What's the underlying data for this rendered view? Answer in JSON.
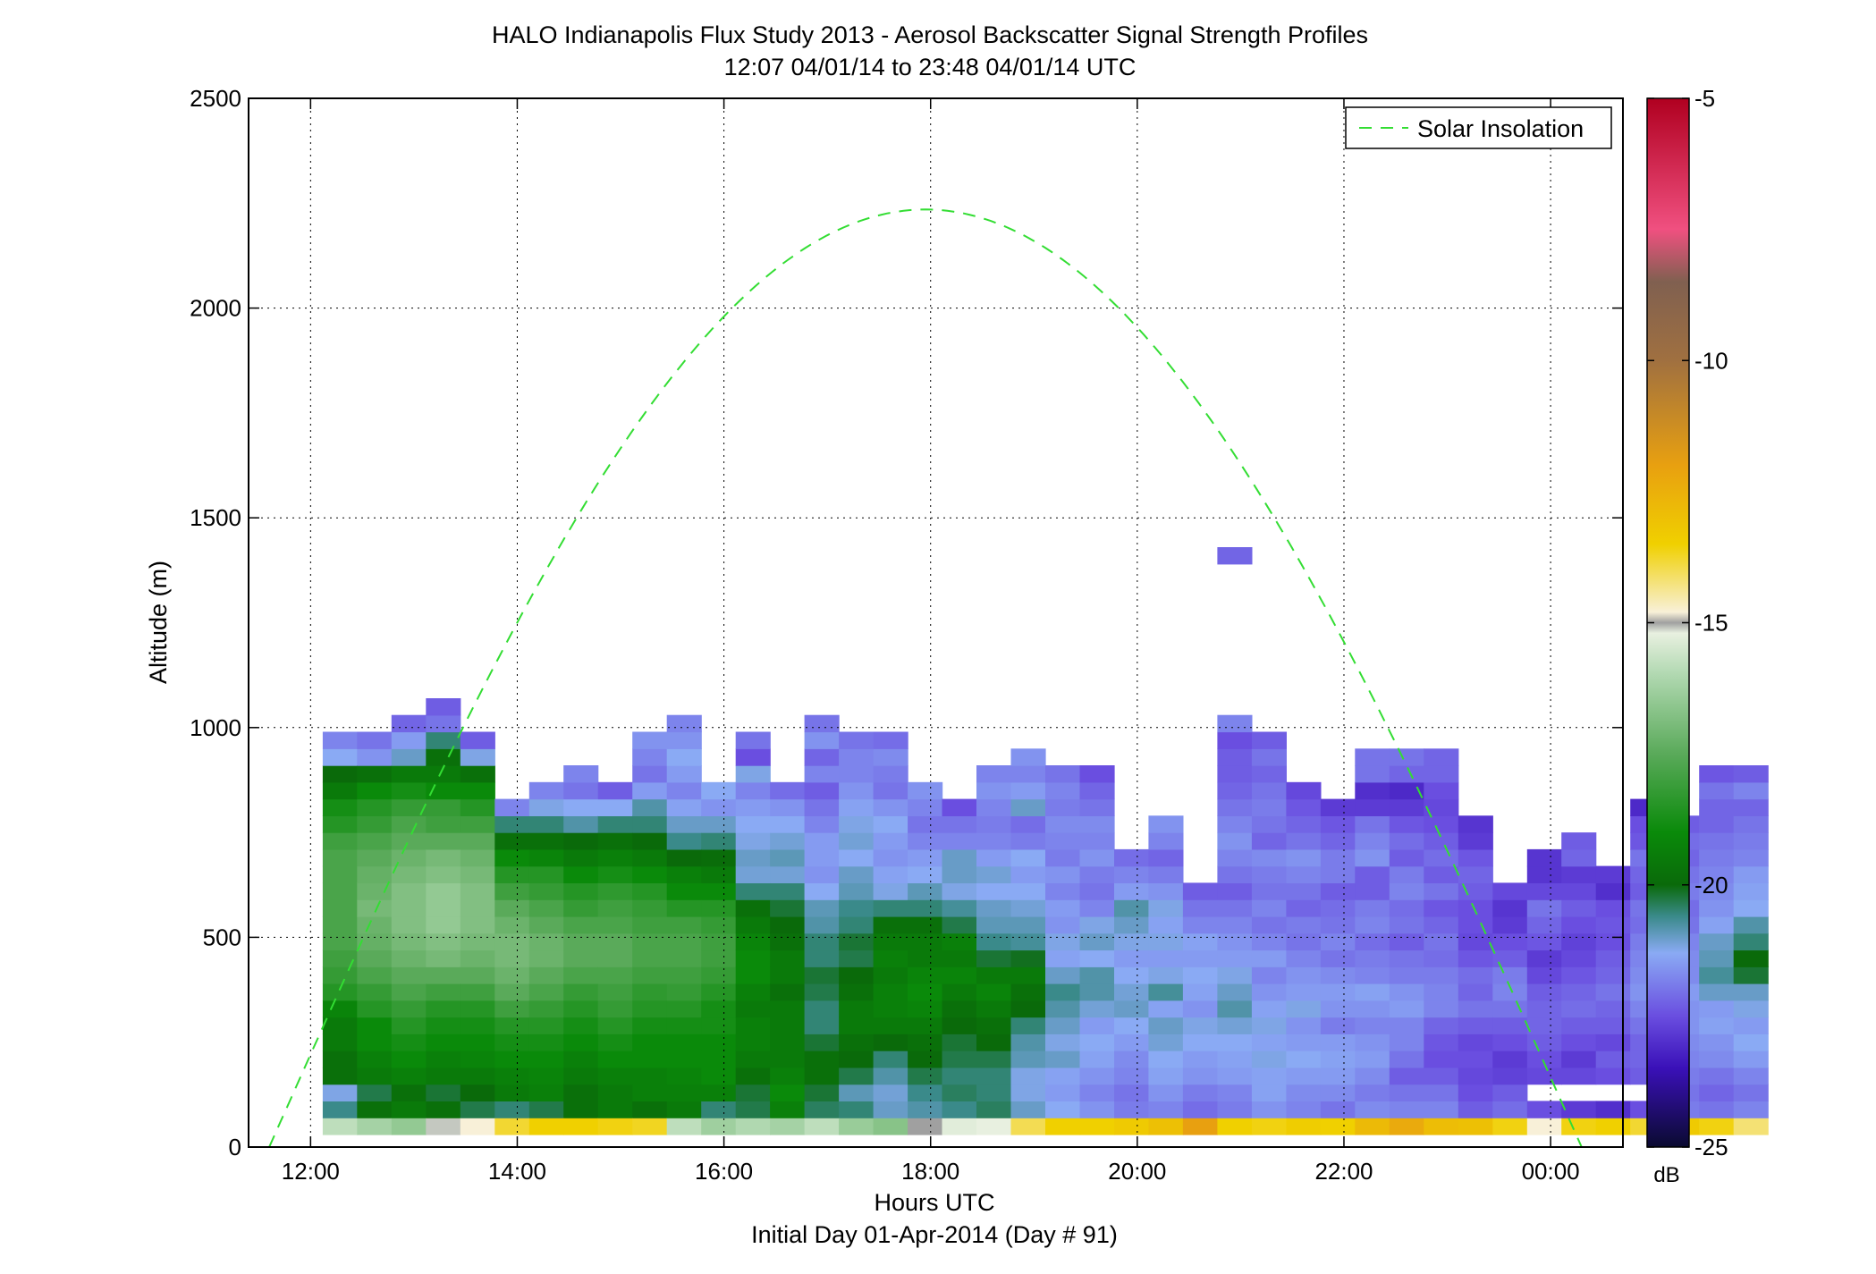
{
  "figure": {
    "title_line1": "HALO Indianapolis Flux Study 2013 - Aerosol Backscatter Signal Strength Profiles",
    "title_line2": "12:07 04/01/14 to 23:48 04/01/14  UTC",
    "xlabel": "Hours UTC",
    "xlabel2": "Initial Day 01-Apr-2014 (Day # 91)",
    "ylabel": "Altitude (m)",
    "colorbar_unit": "dB",
    "legend_label": "Solar Insolation"
  },
  "chart_data": {
    "type": "heatmap",
    "title": "HALO Indianapolis Flux Study 2013 - Aerosol Backscatter Signal Strength Profiles",
    "subtitle": "12:07 04/01/14 to 23:48 04/01/14  UTC",
    "xlabel": "Hours UTC",
    "ylabel": "Altitude (m)",
    "xlim": [
      11.4,
      24.7
    ],
    "ylim": [
      0,
      2500
    ],
    "x_ticks": [
      12,
      14,
      16,
      18,
      20,
      22,
      24
    ],
    "x_tick_labels": [
      "12:00",
      "14:00",
      "16:00",
      "18:00",
      "20:00",
      "22:00",
      "00:00"
    ],
    "y_ticks": [
      0,
      500,
      1000,
      1500,
      2000,
      2500
    ],
    "y_tick_labels": [
      "0",
      "500",
      "1000",
      "1500",
      "2000",
      "2500"
    ],
    "grid": true,
    "colorbar": {
      "min": -25,
      "max": -5,
      "ticks": [
        -25,
        -20,
        -15,
        -10,
        -5
      ],
      "tick_labels": [
        "-25",
        "-20",
        "-15",
        "-10",
        "-5"
      ],
      "unit": "dB"
    },
    "colormap": [
      [
        -25,
        "#0a0a30"
      ],
      [
        -23.5,
        "#3a10b8"
      ],
      [
        -22.5,
        "#6a4ee0"
      ],
      [
        -21.3,
        "#8aaaf4"
      ],
      [
        -20.6,
        "#3a8a8a"
      ],
      [
        -20,
        "#0a6a0a"
      ],
      [
        -19,
        "#0a8a0a"
      ],
      [
        -17.5,
        "#5aaa5a"
      ],
      [
        -16,
        "#b0d8b0"
      ],
      [
        -15.2,
        "#e8f0e0"
      ],
      [
        -15,
        "#a0a0a0"
      ],
      [
        -14.8,
        "#f8f0d8"
      ],
      [
        -13.5,
        "#f0d000"
      ],
      [
        -12,
        "#e8a010"
      ],
      [
        -10,
        "#a07040"
      ],
      [
        -8.5,
        "#806050"
      ],
      [
        -7.5,
        "#f05080"
      ],
      [
        -5,
        "#b00020"
      ]
    ],
    "time_start": 12.117,
    "time_step": 0.333,
    "alt_base": 50,
    "alt_step": 40,
    "profiles": [
      [
        -15.8,
        -20.6,
        -21.2,
        -19.8,
        -19.8,
        -19.5,
        -19.5,
        -19.2,
        -18.5,
        -18.2,
        -18.0,
        -17.8,
        -17.8,
        -17.8,
        -17.8,
        -17.8,
        -17.8,
        -18.0,
        -18.5,
        -18.8,
        -19.5,
        -20.0,
        -21.3,
        -21.8
      ],
      [
        -16.2,
        -19.8,
        -20.3,
        -19.5,
        -19.3,
        -19.0,
        -19.0,
        -18.5,
        -18.2,
        -17.8,
        -17.5,
        -17.3,
        -17.2,
        -17.0,
        -17.2,
        -17.3,
        -17.5,
        -17.8,
        -18.2,
        -18.5,
        -19.0,
        -19.8,
        -21.6,
        -22.0
      ],
      [
        -16.5,
        -19.5,
        -19.8,
        -19.3,
        -19.0,
        -18.8,
        -18.5,
        -18.2,
        -17.8,
        -17.5,
        -17.2,
        -17.0,
        -16.8,
        -16.8,
        -16.8,
        -17.0,
        -17.2,
        -17.5,
        -17.8,
        -18.2,
        -18.8,
        -19.5,
        -21.0,
        -21.5,
        -22.2
      ],
      [
        -15.1,
        -19.8,
        -20.2,
        -19.5,
        -19.3,
        -19.0,
        -18.8,
        -18.5,
        -18.0,
        -17.5,
        -17.0,
        -16.8,
        -16.5,
        -16.5,
        -16.5,
        -16.8,
        -17.0,
        -17.5,
        -18.0,
        -18.2,
        -19.0,
        -19.5,
        -19.8,
        -20.5,
        -22.0,
        -22.3
      ],
      [
        -14.8,
        -20.3,
        -20.0,
        -19.5,
        -19.2,
        -19.0,
        -18.8,
        -18.5,
        -18.0,
        -17.5,
        -17.2,
        -17.0,
        -16.8,
        -16.8,
        -16.8,
        -17.0,
        -17.2,
        -17.5,
        -18.0,
        -18.5,
        -19.0,
        -19.8,
        -21.2,
        -22.3
      ],
      [
        -13.8,
        -20.5,
        -19.5,
        -19.3,
        -19.0,
        -18.8,
        -18.5,
        -18.0,
        -17.5,
        -17.2,
        -17.0,
        -17.0,
        -17.2,
        -17.5,
        -18.0,
        -18.5,
        -19.0,
        -19.8,
        -20.5,
        -21.8
      ],
      [
        -13.5,
        -20.3,
        -19.3,
        -19.2,
        -19.0,
        -18.8,
        -18.5,
        -18.2,
        -17.8,
        -17.5,
        -17.2,
        -17.2,
        -17.5,
        -17.8,
        -18.2,
        -18.5,
        -19.2,
        -19.8,
        -20.5,
        -21.2,
        -21.8
      ],
      [
        -13.5,
        -19.8,
        -19.8,
        -19.5,
        -19.3,
        -19.0,
        -18.8,
        -18.5,
        -18.2,
        -17.8,
        -17.5,
        -17.5,
        -17.8,
        -18.2,
        -18.5,
        -19.0,
        -19.5,
        -20.0,
        -20.8,
        -21.3,
        -22.0,
        -21.8
      ],
      [
        -13.6,
        -19.5,
        -19.5,
        -19.3,
        -19.0,
        -18.8,
        -18.5,
        -18.2,
        -18.0,
        -17.8,
        -17.5,
        -17.5,
        -17.8,
        -18.0,
        -18.3,
        -18.8,
        -19.3,
        -19.8,
        -20.5,
        -21.3,
        -22.3
      ],
      [
        -13.7,
        -19.8,
        -19.3,
        -19.3,
        -19.0,
        -19.0,
        -18.8,
        -18.5,
        -18.3,
        -18.0,
        -17.8,
        -17.8,
        -18.0,
        -18.2,
        -18.5,
        -19.0,
        -19.5,
        -20.0,
        -20.5,
        -20.8,
        -21.5,
        -22.0,
        -21.8,
        -21.6
      ],
      [
        -15.8,
        -19.5,
        -19.3,
        -19.2,
        -19.0,
        -19.0,
        -18.8,
        -18.5,
        -18.2,
        -18.0,
        -17.8,
        -17.8,
        -18.0,
        -18.5,
        -19.0,
        -19.3,
        -20.0,
        -20.6,
        -21.0,
        -21.4,
        -21.8,
        -21.5,
        -21.3,
        -21.6,
        -21.8
      ],
      [
        -16.3,
        -20.5,
        -19.3,
        -19.0,
        -19.0,
        -19.0,
        -18.8,
        -18.8,
        -18.5,
        -18.2,
        -18.0,
        -18.0,
        -18.2,
        -18.5,
        -19.0,
        -19.5,
        -19.9,
        -20.5,
        -21.0,
        -21.6,
        -21.3
      ],
      [
        -16.0,
        -20.3,
        -20.2,
        -19.8,
        -19.5,
        -19.3,
        -19.3,
        -19.5,
        -19.3,
        -19.0,
        -19.0,
        -19.2,
        -19.5,
        -19.8,
        -20.5,
        -21.1,
        -21.0,
        -21.2,
        -21.3,
        -21.5,
        -21.8,
        -21.2,
        -22.5,
        -22.0
      ],
      [
        -16.2,
        -19.3,
        -19.0,
        -19.3,
        -19.5,
        -19.5,
        -19.5,
        -19.5,
        -19.8,
        -19.5,
        -19.5,
        -19.8,
        -20.0,
        -20.2,
        -20.5,
        -21.1,
        -20.9,
        -21.1,
        -21.3,
        -21.6,
        -22.1
      ],
      [
        -15.8,
        -20.4,
        -20.2,
        -19.8,
        -19.8,
        -20.2,
        -20.5,
        -20.5,
        -20.3,
        -20.2,
        -20.5,
        -20.5,
        -20.8,
        -20.9,
        -21.3,
        -21.6,
        -21.5,
        -21.5,
        -21.8,
        -22.0,
        -22.3,
        -21.8,
        -22.2,
        -21.6,
        -22.0
      ],
      [
        -16.4,
        -20.5,
        -20.9,
        -20.3,
        -20.0,
        -19.8,
        -19.5,
        -19.5,
        -19.8,
        -20.0,
        -20.3,
        -20.2,
        -20.5,
        -20.6,
        -20.9,
        -21.0,
        -21.3,
        -21.1,
        -21.2,
        -21.4,
        -21.6,
        -21.8,
        -21.8,
        -22.0
      ],
      [
        -16.7,
        -21.0,
        -21.1,
        -20.8,
        -20.5,
        -20.0,
        -19.5,
        -19.3,
        -19.3,
        -19.5,
        -19.3,
        -19.5,
        -19.8,
        -20.5,
        -21.2,
        -21.4,
        -21.6,
        -21.5,
        -21.3,
        -21.6,
        -22.0,
        -21.9,
        -21.7,
        -22.1
      ],
      [
        -15.0,
        -20.8,
        -20.6,
        -20.3,
        -20.0,
        -19.8,
        -19.5,
        -19.2,
        -19.0,
        -19.2,
        -19.5,
        -19.5,
        -19.8,
        -20.5,
        -20.9,
        -21.3,
        -21.5,
        -21.8,
        -22.0,
        -21.8,
        -21.6
      ],
      [
        -15.3,
        -20.6,
        -20.4,
        -20.5,
        -20.3,
        -20.2,
        -20.0,
        -19.8,
        -19.5,
        -19.2,
        -19.5,
        -19.3,
        -20.3,
        -20.7,
        -21.2,
        -21.0,
        -21.0,
        -21.8,
        -22.0,
        -22.5
      ],
      [
        -15.2,
        -20.4,
        -20.5,
        -20.5,
        -20.3,
        -20.0,
        -19.8,
        -19.5,
        -19.2,
        -19.5,
        -20.2,
        -20.6,
        -20.9,
        -21.0,
        -21.3,
        -21.1,
        -21.5,
        -21.8,
        -21.9,
        -21.8,
        -21.6,
        -21.8
      ],
      [
        -14.0,
        -21.0,
        -21.2,
        -21.2,
        -20.9,
        -20.8,
        -20.5,
        -20.0,
        -19.8,
        -19.5,
        -20.1,
        -20.7,
        -20.9,
        -21.1,
        -21.3,
        -21.5,
        -21.3,
        -21.9,
        -22.1,
        -21.0,
        -21.5,
        -21.8,
        -21.6
      ],
      [
        -13.5,
        -21.3,
        -21.5,
        -21.4,
        -21.0,
        -21.2,
        -21.0,
        -20.8,
        -20.6,
        -21.0,
        -21.4,
        -21.2,
        -21.6,
        -21.5,
        -21.8,
        -21.6,
        -21.9,
        -21.8,
        -21.7,
        -21.9,
        -21.8,
        -22.0
      ],
      [
        -13.5,
        -21.6,
        -21.8,
        -21.6,
        -21.4,
        -21.3,
        -21.5,
        -21.1,
        -20.8,
        -20.8,
        -21.3,
        -21.0,
        -21.2,
        -21.8,
        -22.0,
        -21.9,
        -21.6,
        -21.8,
        -21.7,
        -22.0,
        -22.2,
        -22.5
      ],
      [
        -13.3,
        -21.9,
        -22.0,
        -21.8,
        -21.7,
        -21.5,
        -21.3,
        -21.0,
        -21.1,
        -21.3,
        -21.5,
        -21.2,
        -21.0,
        -20.8,
        -21.5,
        -21.8,
        -22.1
      ],
      [
        -13.0,
        -21.8,
        -21.6,
        -21.4,
        -21.3,
        -21.1,
        -21.0,
        -21.4,
        -20.7,
        -21.2,
        -21.5,
        -21.2,
        -21.4,
        -21.2,
        -21.6,
        -21.9,
        -22.2,
        -21.8,
        -21.6
      ],
      [
        -12.0,
        -22.1,
        -21.9,
        -21.6,
        -21.5,
        -21.3,
        -21.2,
        -21.6,
        -21.4,
        -21.3,
        -21.5,
        -21.4,
        -21.8,
        -22.0,
        -22.3
      ],
      [
        -13.5,
        -21.9,
        -21.8,
        -21.5,
        -21.4,
        -21.3,
        -21.1,
        -20.8,
        -21.0,
        -21.2,
        -21.5,
        -21.6,
        -21.8,
        -22.0,
        -22.3,
        -22.0,
        -21.8,
        -21.6,
        -21.8,
        -22.0,
        -22.2,
        -22.3,
        -22.3,
        -22.5,
        -21.8,
        null,
        null,
        null,
        null,
        null,
        null,
        null,
        null,
        null,
        -22.2
      ],
      [
        -13.6,
        -21.6,
        -21.4,
        -21.4,
        -21.2,
        -21.4,
        -21.2,
        -21.4,
        -21.6,
        -21.8,
        -21.5,
        -21.8,
        -22.0,
        -21.8,
        -22.0,
        -21.9,
        -21.7,
        -22.2,
        -22.0,
        -21.9,
        -22.0,
        -22.2,
        -22.0,
        -22.3
      ],
      [
        -13.4,
        -21.8,
        -21.7,
        -21.5,
        -21.3,
        -21.5,
        -21.6,
        -21.2,
        -21.5,
        -21.6,
        -21.8,
        -22.0,
        -21.9,
        -22.2,
        -22.0,
        -21.8,
        -21.6,
        -22.0,
        -22.2,
        -22.4,
        -22.6
      ],
      [
        -13.5,
        -22.0,
        -21.7,
        -21.5,
        -21.4,
        -21.5,
        -21.9,
        -21.6,
        -21.5,
        -21.7,
        -22.0,
        -21.8,
        -22.0,
        -22.1,
        -22.3,
        -21.9,
        -21.9,
        -22.2,
        -22.4,
        -22.8
      ],
      [
        -12.8,
        -21.7,
        -21.9,
        -21.7,
        -21.5,
        -21.6,
        -21.8,
        -21.6,
        -21.4,
        -21.8,
        -21.9,
        -22.1,
        -21.8,
        -21.9,
        -22.3,
        -22.3,
        -21.6,
        -21.8,
        -22.0,
        -22.8,
        -23.0,
        -22.0,
        -22.0
      ],
      [
        -12.3,
        -21.8,
        -22.0,
        -22.3,
        -22.0,
        -21.8,
        -21.8,
        -21.5,
        -21.6,
        -21.9,
        -22.0,
        -22.3,
        -22.0,
        -22.1,
        -21.8,
        -21.9,
        -22.3,
        -22.1,
        -22.4,
        -22.8,
        -23.1,
        -22.2,
        -22.0
      ],
      [
        -12.9,
        -21.8,
        -22.0,
        -22.3,
        -22.5,
        -22.4,
        -22.2,
        -21.8,
        -21.8,
        -21.9,
        -22.1,
        -22.0,
        -22.2,
        -22.4,
        -22.0,
        -22.3,
        -22.1,
        -22.3,
        -22.5,
        -22.6,
        -22.5,
        -22.2,
        -22.2
      ],
      [
        -13.0,
        -22.3,
        -22.5,
        -22.6,
        -22.5,
        -22.6,
        -22.3,
        -22.0,
        -22.2,
        -22.1,
        -22.4,
        -22.6,
        -22.5,
        -22.5,
        -22.3,
        -22.2,
        -22.4,
        -22.8,
        -22.9
      ],
      [
        -13.6,
        -22.1,
        -22.3,
        -22.7,
        -22.8,
        -22.5,
        -22.3,
        -22.0,
        -21.8,
        -21.9,
        -22.3,
        -22.5,
        -22.8,
        -22.9,
        -22.6
      ],
      [
        -14.8,
        -22.5,
        null,
        -22.6,
        -22.5,
        -22.3,
        -22.2,
        -22.2,
        -22.3,
        -22.6,
        -22.8,
        -22.4,
        -22.2,
        -22.0,
        -22.6,
        -22.9,
        -22.9
      ],
      [
        -13.6,
        -22.8,
        null,
        -22.6,
        -22.8,
        -22.5,
        -22.3,
        -22.1,
        -22.2,
        -22.4,
        -22.6,
        -22.7,
        -22.5,
        -22.3,
        -22.6,
        -22.8,
        -22.2,
        -22.3
      ],
      [
        -13.5,
        -23.0,
        null,
        -22.5,
        -22.3,
        -22.6,
        -22.3,
        -22.2,
        -22.0,
        -22.2,
        -22.3,
        -22.5,
        -22.4,
        -22.5,
        -23.0,
        -22.8
      ],
      [
        -13.8,
        -22.5,
        null,
        -22.3,
        -22.2,
        -22.2,
        -22.0,
        -21.8,
        -21.6,
        -21.7,
        -21.8,
        -21.9,
        -22.1,
        -22.0,
        -22.3,
        -22.2,
        -22.0,
        -22.4,
        -22.5,
        -23.1
      ],
      [
        -13.3,
        -21.9,
        -22.0,
        -21.9,
        -21.8,
        -21.7,
        -21.6,
        -21.6,
        -21.5,
        -21.7,
        -21.7,
        -21.8,
        -22.0,
        -22.1,
        -21.9,
        -22.0,
        -22.2,
        -22.1,
        -22.3
      ],
      [
        -13.6,
        -22.0,
        -22.2,
        -22.0,
        -21.7,
        -21.6,
        -21.4,
        -21.5,
        -21.0,
        -20.7,
        -20.9,
        -21.0,
        -21.4,
        -21.6,
        -21.7,
        -21.8,
        -21.9,
        -22.0,
        -22.2,
        -22.2,
        -22.0,
        -22.4
      ],
      [
        -14.2,
        -21.8,
        -22.0,
        -21.8,
        -21.5,
        -21.3,
        -21.5,
        -21.2,
        -21.0,
        -20.2,
        -20.0,
        -20.5,
        -20.8,
        -21.3,
        -21.4,
        -21.5,
        -21.8,
        -21.9,
        -22.0,
        -22.2,
        -21.8,
        -22.3
      ]
    ]
  },
  "solar_insolation": {
    "label": "Solar Insolation",
    "color": "#33dd33",
    "noon_hour": 17.95,
    "peak_alt_m": 2235,
    "zero_hours": [
      11.6,
      24.3
    ]
  }
}
